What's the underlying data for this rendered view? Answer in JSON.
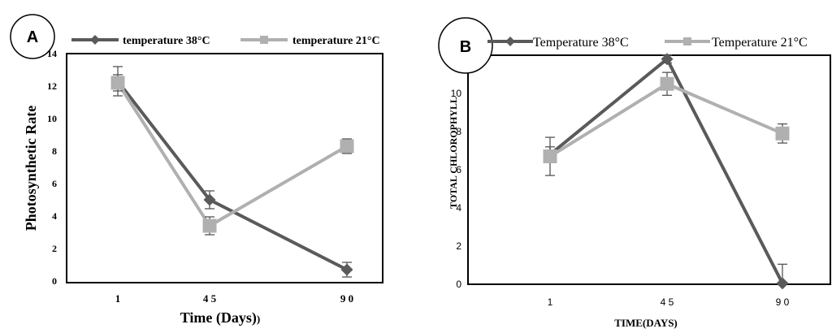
{
  "chart_data": [
    {
      "type": "line",
      "panel_label": "A",
      "categories": [
        "1",
        "4 5",
        "9 0"
      ],
      "series": [
        {
          "name": "temperature 38°C",
          "values": [
            12.3,
            5.0,
            0.7
          ],
          "errors": [
            0.9,
            0.55,
            0.45
          ],
          "color": "#5a5a5a",
          "marker": "diamond"
        },
        {
          "name": "temperature 21°C",
          "values": [
            12.2,
            3.4,
            8.3
          ],
          "errors": [
            0.5,
            0.55,
            0.45
          ],
          "color": "#b0b0b0",
          "marker": "square"
        }
      ],
      "xlabel": "Time (Days)",
      "xlabel_suffix": ")",
      "ylabel": "Photosynthetic Rate",
      "ylim": [
        0,
        14
      ],
      "yticks": [
        "0",
        "2",
        "4",
        "6",
        "8",
        "10",
        "12",
        "14"
      ],
      "grid": false,
      "legend": "top"
    },
    {
      "type": "line",
      "panel_label": "B",
      "categories": [
        "1",
        "4 5",
        "9 0"
      ],
      "series": [
        {
          "name": "Temperature 38°C",
          "values": [
            6.8,
            11.8,
            0.05
          ],
          "errors": [
            0.4,
            0.2,
            1.0
          ],
          "color": "#5a5a5a",
          "marker": "diamond"
        },
        {
          "name": "Temperature 21°C",
          "values": [
            6.7,
            10.5,
            7.9
          ],
          "errors": [
            1.0,
            0.6,
            0.5
          ],
          "color": "#b0b0b0",
          "marker": "square"
        }
      ],
      "xlabel": "TIME(DAYS)",
      "ylabel": "TOTAL CHLOROPHYLL",
      "ylim": [
        0,
        12
      ],
      "yticks": [
        "0",
        "2",
        "4",
        "6",
        "8",
        "10"
      ],
      "grid": false,
      "legend": "top"
    }
  ]
}
